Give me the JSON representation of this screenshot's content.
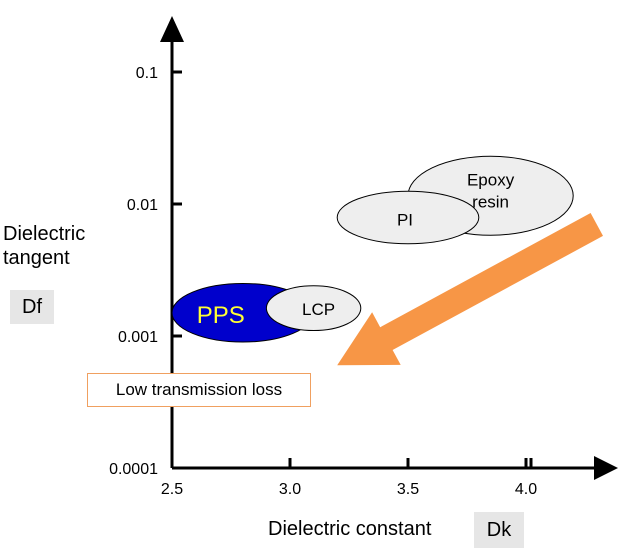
{
  "chart_data": {
    "type": "scatter",
    "x_axis": {
      "label": "Dielectric constant",
      "symbol": "Dk",
      "range": [
        2.5,
        4.4
      ],
      "ticks": [
        {
          "value": 2.5,
          "label": "2.5"
        },
        {
          "value": 3.0,
          "label": "3.0"
        },
        {
          "value": 3.5,
          "label": "3.5"
        },
        {
          "value": 4.0,
          "label": "4.0"
        }
      ]
    },
    "y_axis": {
      "label": "Dielectric tangent",
      "symbol": "Df",
      "scale": "log",
      "range": [
        0.0001,
        0.2
      ],
      "ticks": [
        {
          "value": 0.0001,
          "label": "0.0001"
        },
        {
          "value": 0.001,
          "label": "0.001"
        },
        {
          "value": 0.01,
          "label": "0.01"
        },
        {
          "value": 0.1,
          "label": "0.1"
        }
      ]
    },
    "grid": false,
    "materials": [
      {
        "name": "PPS",
        "dk_range": [
          2.5,
          3.1
        ],
        "df_range": [
          0.0009,
          0.0025
        ],
        "fill": "#0000cc",
        "label_color": "#ffff33"
      },
      {
        "name": "LCP",
        "dk_range": [
          2.9,
          3.3
        ],
        "df_range": [
          0.0011,
          0.0024
        ],
        "fill": "#eeeeee",
        "label_color": "#000000"
      },
      {
        "name": "PI",
        "dk_range": [
          3.2,
          3.8
        ],
        "df_range": [
          0.005,
          0.0125
        ],
        "fill": "#eeeeee",
        "label_color": "#000000"
      },
      {
        "name_lines": [
          "Epoxy",
          "resin"
        ],
        "dk_range": [
          3.5,
          4.2
        ],
        "df_range": [
          0.0058,
          0.023
        ],
        "fill": "#eeeeee",
        "label_color": "#000000"
      }
    ],
    "annotation": {
      "text": "Low transmission loss",
      "arrow_from": {
        "dk": 4.3,
        "df": 0.007
      },
      "arrow_to": {
        "dk": 3.2,
        "df": 0.0006
      },
      "arrow_color": "#f79646"
    }
  }
}
